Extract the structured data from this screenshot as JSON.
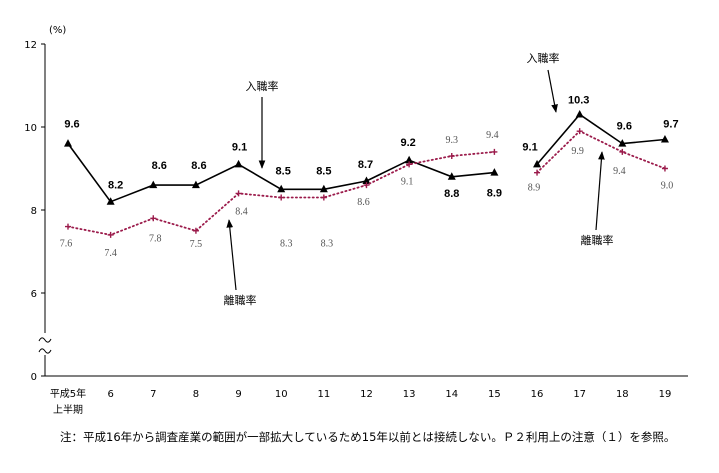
{
  "chart_data": {
    "type": "line",
    "categories": [
      "平成5年\n上半期",
      "6",
      "7",
      "8",
      "9",
      "10",
      "11",
      "12",
      "13",
      "14",
      "15",
      "16",
      "17",
      "18",
      "19"
    ],
    "y_unit": "(%)",
    "y_ticks": [
      0,
      6,
      8,
      10,
      12
    ],
    "ylim": [
      0,
      12
    ],
    "y_axis_break": [
      0,
      6
    ],
    "series_break_between": [
      "15",
      "16"
    ],
    "grid": false,
    "series": [
      {
        "name": "入職率",
        "color": "#000000",
        "values": [
          9.6,
          8.2,
          8.6,
          8.6,
          9.1,
          8.5,
          8.5,
          8.7,
          9.2,
          8.8,
          8.9,
          9.1,
          10.3,
          9.6,
          9.7
        ]
      },
      {
        "name": "離職率",
        "color": "#9b1b4b",
        "values": [
          7.6,
          7.4,
          7.8,
          7.5,
          8.4,
          8.3,
          8.3,
          8.6,
          9.1,
          9.3,
          9.4,
          8.9,
          9.9,
          9.4,
          9.0
        ]
      }
    ],
    "note": "注：平成16年から調査産業の範囲が一部拡大しているため15年以前とは接続しない。Ｐ２利用上の注意（１）を参照。"
  }
}
